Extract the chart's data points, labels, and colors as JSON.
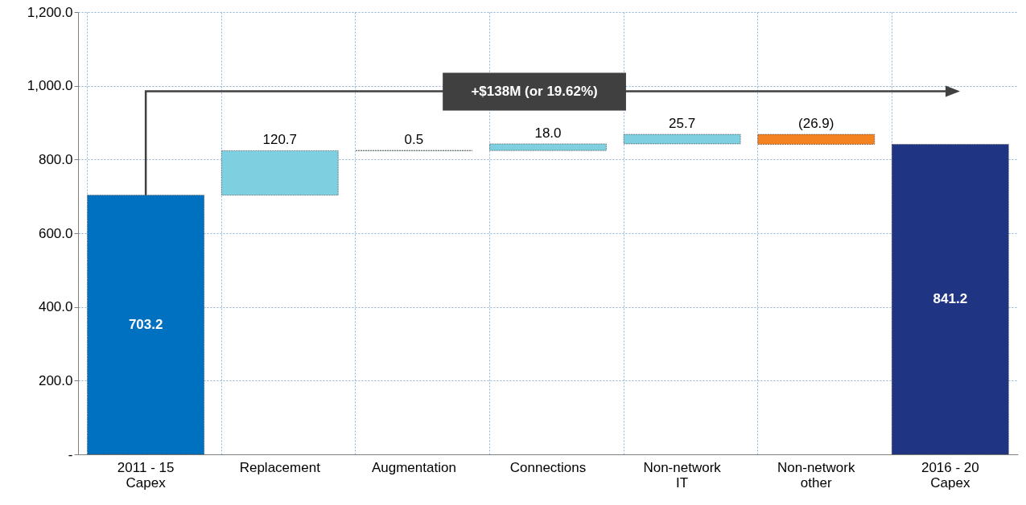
{
  "chart_data": {
    "type": "bar",
    "categories": [
      "2011 - 15\nCapex",
      "Replacement",
      "Augmentation",
      "Connections",
      "Non-network\nIT",
      "Non-network\nother",
      "2016 - 20\nCapex"
    ],
    "values": [
      703.2,
      120.7,
      0.5,
      18.0,
      25.7,
      -26.9,
      841.2
    ],
    "base": [
      0,
      703.2,
      823.9,
      824.4,
      842.4,
      868.1,
      0
    ],
    "colors": [
      "#0070c0",
      "#7ecfe0",
      "#7ecfe0",
      "#7ecfe0",
      "#7ecfe0",
      "#f58220",
      "#1f3584"
    ],
    "value_labels": [
      "703.2",
      "120.7",
      "0.5",
      "18.0",
      "25.7",
      "(26.9)",
      "841.2"
    ],
    "ylim": [
      0,
      1200
    ],
    "yticks": [
      {
        "value": 0,
        "label": "-"
      },
      {
        "value": 200,
        "label": "200.0"
      },
      {
        "value": 400,
        "label": "400.0"
      },
      {
        "value": 600,
        "label": "600.0"
      },
      {
        "value": 800,
        "label": "800.0"
      },
      {
        "value": 1000,
        "label": "1,000.0"
      },
      {
        "value": 1200,
        "label": "1,200.0"
      }
    ],
    "annotations": [
      "+$138M (or 19.62%)"
    ],
    "grid": true
  }
}
